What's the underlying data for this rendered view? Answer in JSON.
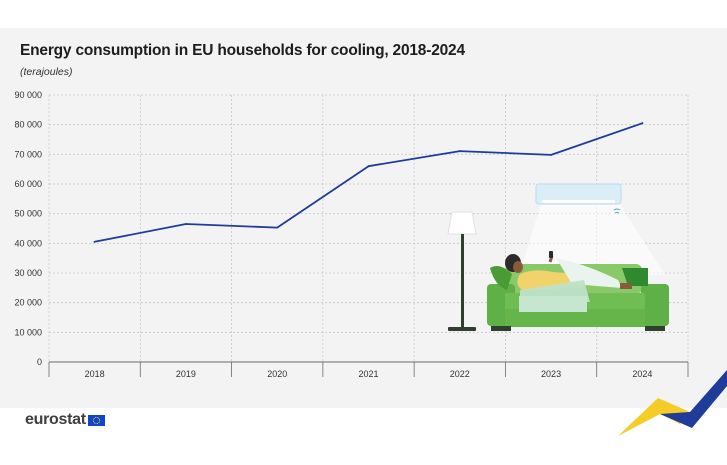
{
  "chart_data": {
    "type": "line",
    "title": "Energy consumption in EU households for cooling, 2018-2024",
    "subtitle": "(terajoules)",
    "categories": [
      "2018",
      "2019",
      "2020",
      "2021",
      "2022",
      "2023",
      "2024"
    ],
    "series": [
      {
        "values": [
          40500,
          46500,
          45300,
          66000,
          71100,
          69800,
          80500
        ],
        "color": "#1f3c9a"
      }
    ],
    "yticks": [
      0,
      10000,
      20000,
      30000,
      40000,
      50000,
      60000,
      70000,
      80000,
      90000
    ],
    "ytick_labels": [
      "0",
      "10 000",
      "20 000",
      "30 000",
      "40 000",
      "50 000",
      "60 000",
      "70 000",
      "80 000",
      "90 000"
    ],
    "ylim": [
      0,
      90000
    ],
    "grid": true,
    "legend": "none",
    "gridline_color": "#c8c8c8",
    "illustration": "person-lying-on-green-sofa-under-air-conditioner"
  },
  "footer": {
    "brand": "eurostat",
    "flag_icon": "eu-flag-icon",
    "swoosh_colors": [
      "#f4c300",
      "#1f3c9a"
    ]
  }
}
